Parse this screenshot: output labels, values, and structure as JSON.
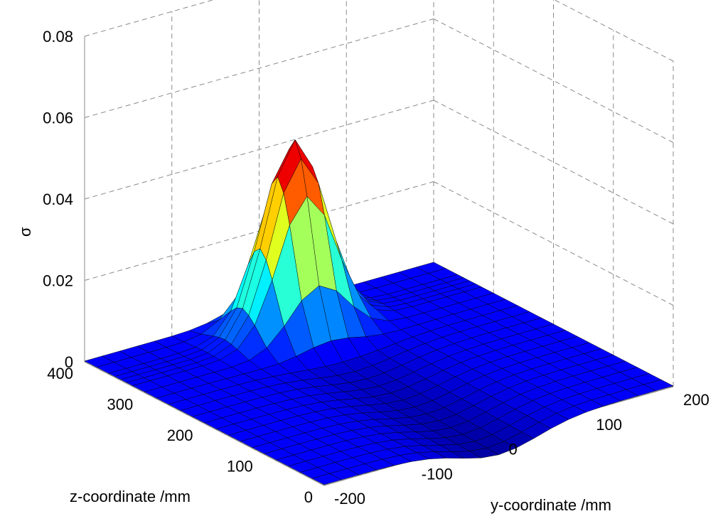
{
  "chart_data": {
    "type": "surface",
    "title": "",
    "xlabel": "y-coordinate /mm",
    "ylabel": "z-coordinate /mm",
    "zlabel": "σ",
    "colormap": "jet",
    "y_coordinate_range": [
      -200,
      200
    ],
    "z_coordinate_range": [
      0,
      400
    ],
    "sigma_range": [
      0,
      0.08
    ],
    "y_coordinate_ticks": [
      "-200",
      "-100",
      "0",
      "100",
      "200"
    ],
    "z_coordinate_ticks": [
      "0",
      "100",
      "200",
      "300",
      "400"
    ],
    "sigma_ticks": [
      "0",
      "0.02",
      "0.04",
      "0.06",
      "0.08"
    ],
    "grid": true,
    "surface": {
      "y_coordinate": [
        -200,
        -180,
        -160,
        -140,
        -120,
        -100,
        -80,
        -60,
        -40,
        -20,
        0,
        20,
        40,
        60,
        80,
        100,
        120,
        140,
        160,
        180,
        200
      ],
      "z_coordinate": [
        0,
        20,
        40,
        60,
        80,
        100,
        120,
        140,
        160,
        180,
        200,
        220,
        240,
        260,
        280,
        300,
        320,
        330,
        340,
        350,
        360,
        380,
        400
      ],
      "peak": {
        "y_coordinate": 0,
        "z_coordinate": 340,
        "sigma": 0.047
      },
      "baseline_sigma": 0.0002
    },
    "legend": "none"
  },
  "colors": {
    "background": "#ffffff",
    "grid": "#8a8a8a",
    "facet_edge": "#000000",
    "base_surface": "#0d0d9c"
  }
}
